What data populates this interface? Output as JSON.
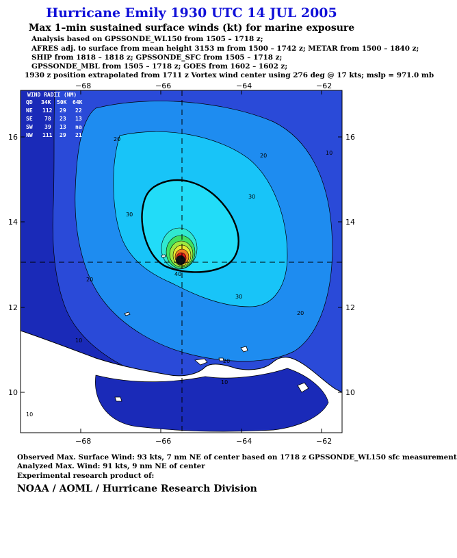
{
  "title": "Hurricane Emily 1930 UTC 14 JUL 2005",
  "subtitle": "Max 1–min sustained surface winds (kt) for marine exposure",
  "analysis_lines": [
    "Analysis based on  GPSSONDE_WL150 from 1505 – 1718 z;",
    "AFRES adj. to surface from mean height 3153 m from 1500 – 1742 z;  METAR from 1500 – 1840 z;",
    "SHIP from 1818 – 1818 z;  GPSSONDE_SFC from 1505 – 1718 z;",
    "GPSSONDE_MBL from 1505 – 1718 z;  GOES from 1602 – 1602 z;",
    "1930 z position extrapolated from 1711 z Vortex wind center using 276 deg @ 17 kts; mslp = 971.0 mb"
  ],
  "map": {
    "lon_ticks": [
      "−68",
      "−66",
      "−64",
      "−62"
    ],
    "lat_ticks": [
      "16",
      "14",
      "12",
      "10"
    ],
    "contour_labels": [
      "20",
      "20",
      "10",
      "30",
      "30",
      "40",
      "20",
      "30",
      "20",
      "10",
      "20",
      "10",
      "10"
    ],
    "center": {
      "lon": -65.5,
      "lat": 13.1
    },
    "colors": {
      "ocean_dark": "#1a2ab8",
      "band_10": "#2a4ad8",
      "band_20": "#1e8cf0",
      "band_30": "#18c4f8",
      "land": "#ffffff",
      "core_green": "#40e060",
      "core_yellow": "#e8e830",
      "core_orange": "#f08020",
      "core_red": "#e01818"
    }
  },
  "wind_radii": {
    "title": "WIND RADII (NM)",
    "header": [
      "QD",
      "34K",
      "50K",
      "64K"
    ],
    "rows": [
      [
        "NE",
        "112",
        "29",
        "22"
      ],
      [
        "SE",
        "78",
        "23",
        "13"
      ],
      [
        "SW",
        "39",
        "13",
        "na"
      ],
      [
        "NW",
        "111",
        "29",
        "21"
      ]
    ]
  },
  "footer": {
    "observed": "Observed Max. Surface Wind: 93 kts, 7 nm NE of center based on 1718 z GPSSONDE_WL150 sfc measurement",
    "analyzed": "Analyzed Max. Wind: 91 kts, 9 nm NE of center",
    "experimental": "Experimental research product of:",
    "org": "NOAA / AOML / Hurricane Research Division"
  }
}
